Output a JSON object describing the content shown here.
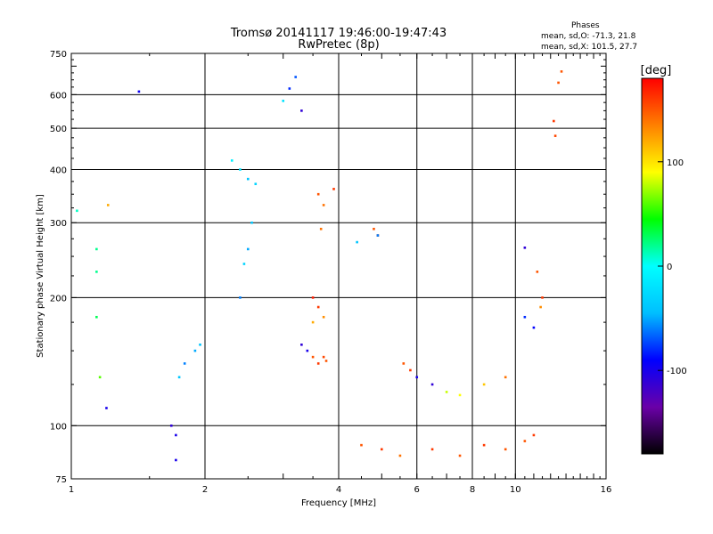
{
  "chart_data": {
    "type": "scatter",
    "title": "Tromsø 20141117 19:46:00-19:47:43",
    "subtitle": "RwPretec (8p)",
    "xlabel": "Frequency [MHz]",
    "ylabel": "Stationary phase Virtual Height [km]",
    "x_scale": "log",
    "y_scale": "log",
    "xlim": [
      1,
      16
    ],
    "ylim": [
      75,
      750
    ],
    "x_ticks": [
      1,
      2,
      4,
      6,
      8,
      10,
      16
    ],
    "x_tick_labels": [
      "1",
      "2",
      "4",
      "6",
      "8",
      "10",
      "16"
    ],
    "y_ticks": [
      75,
      100,
      200,
      300,
      400,
      500,
      600,
      750
    ],
    "y_tick_labels": [
      "75",
      "100",
      "200",
      "300",
      "400",
      "500",
      "600",
      "750"
    ],
    "grid": true,
    "colorbar": {
      "label": "[deg]",
      "range": [
        -180,
        180
      ],
      "ticks": [
        100,
        0,
        -100
      ],
      "tick_labels": [
        "100",
        "0",
        "-100"
      ],
      "colors": [
        "#000000",
        "#6a00a8",
        "#0000ff",
        "#00bfff",
        "#00ffff",
        "#00ff00",
        "#ffff00",
        "#ff8000",
        "#ff0000"
      ]
    },
    "legend": {
      "title": "Phases",
      "lines": [
        "mean, sd,O: -71.3, 21.8",
        "mean, sd,X: 101.5, 27.7"
      ],
      "placement": "top-right"
    },
    "series": [
      {
        "values": [
          [
            1.42,
            610,
            -95
          ],
          [
            1.21,
            330,
            120
          ],
          [
            1.03,
            320,
            10
          ],
          [
            1.14,
            260,
            20
          ],
          [
            1.14,
            230,
            20
          ],
          [
            1.14,
            180,
            30
          ],
          [
            1.16,
            130,
            60
          ],
          [
            1.2,
            110,
            -100
          ],
          [
            1.68,
            100,
            -110
          ],
          [
            1.72,
            95,
            -100
          ],
          [
            1.72,
            83,
            -100
          ],
          [
            1.75,
            130,
            -40
          ],
          [
            1.8,
            140,
            -60
          ],
          [
            1.9,
            150,
            -50
          ],
          [
            1.95,
            155,
            -40
          ],
          [
            2.3,
            420,
            -10
          ],
          [
            2.4,
            400,
            -20
          ],
          [
            2.5,
            380,
            -40
          ],
          [
            2.6,
            370,
            -30
          ],
          [
            2.55,
            300,
            -40
          ],
          [
            2.5,
            260,
            -50
          ],
          [
            2.45,
            240,
            -30
          ],
          [
            2.4,
            200,
            -60
          ],
          [
            3.2,
            660,
            -70
          ],
          [
            3.1,
            620,
            -80
          ],
          [
            3.0,
            580,
            -20
          ],
          [
            3.3,
            550,
            -110
          ],
          [
            3.6,
            350,
            150
          ],
          [
            3.7,
            330,
            140
          ],
          [
            3.9,
            360,
            160
          ],
          [
            3.65,
            290,
            140
          ],
          [
            4.8,
            290,
            150
          ],
          [
            4.9,
            280,
            160
          ],
          [
            4.4,
            270,
            -40
          ],
          [
            4.9,
            280,
            -60
          ],
          [
            3.5,
            200,
            170
          ],
          [
            3.6,
            190,
            160
          ],
          [
            3.7,
            180,
            130
          ],
          [
            3.5,
            175,
            120
          ],
          [
            3.3,
            155,
            -110
          ],
          [
            3.4,
            150,
            -100
          ],
          [
            3.5,
            145,
            150
          ],
          [
            3.6,
            140,
            160
          ],
          [
            3.7,
            145,
            155
          ],
          [
            3.75,
            142,
            150
          ],
          [
            5.6,
            140,
            150
          ],
          [
            5.8,
            135,
            160
          ],
          [
            6.0,
            130,
            -100
          ],
          [
            6.5,
            125,
            -110
          ],
          [
            7.0,
            120,
            80
          ],
          [
            7.5,
            118,
            90
          ],
          [
            8.5,
            125,
            110
          ],
          [
            9.5,
            130,
            140
          ],
          [
            10.5,
            180,
            -80
          ],
          [
            11.0,
            170,
            -90
          ],
          [
            11.4,
            190,
            130
          ],
          [
            11.5,
            200,
            160
          ],
          [
            10.5,
            262,
            -110
          ],
          [
            11.2,
            230,
            150
          ],
          [
            12.5,
            640,
            150
          ],
          [
            12.2,
            520,
            160
          ],
          [
            12.3,
            480,
            155
          ],
          [
            12.7,
            680,
            150
          ],
          [
            4.5,
            90,
            150
          ],
          [
            5.0,
            88,
            160
          ],
          [
            5.5,
            85,
            140
          ],
          [
            6.5,
            88,
            160
          ],
          [
            7.5,
            85,
            150
          ],
          [
            8.5,
            90,
            160
          ],
          [
            9.5,
            88,
            150
          ],
          [
            10.5,
            92,
            150
          ],
          [
            11.0,
            95,
            160
          ]
        ]
      }
    ]
  }
}
